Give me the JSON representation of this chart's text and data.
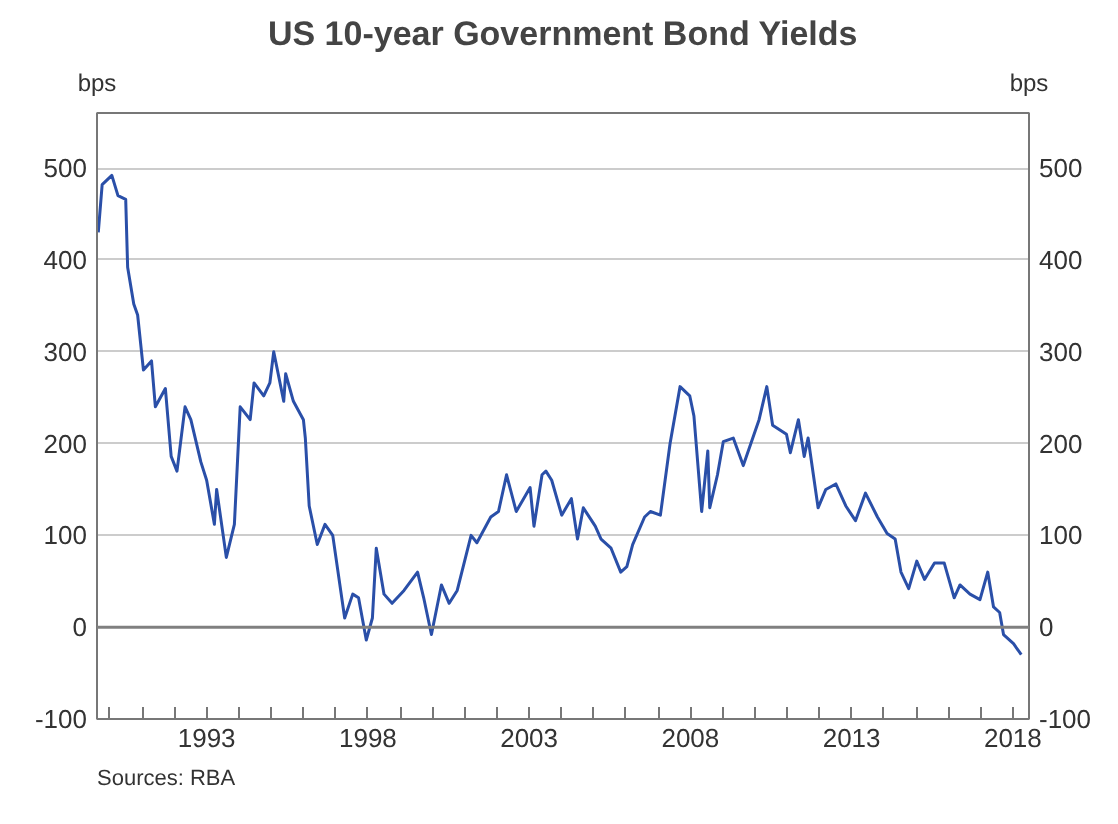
{
  "chart_data": {
    "type": "line",
    "title": "US 10-year Government Bond Yields",
    "ylabel": "bps",
    "y2label": "bps",
    "annotations": [
      "Sources: RBA"
    ],
    "x": [
      1989.64,
      1989.76,
      1990.06,
      1990.25,
      1990.49,
      1990.55,
      1990.74,
      1990.86,
      1991.04,
      1991.29,
      1991.41,
      1991.72,
      1991.9,
      1992.08,
      1992.33,
      1992.51,
      1992.82,
      1993.0,
      1993.24,
      1993.31,
      1993.61,
      1993.86,
      1994.04,
      1994.35,
      1994.47,
      1994.77,
      1994.96,
      1995.08,
      1995.39,
      1995.45,
      1995.69,
      1996.0,
      1996.06,
      1996.18,
      1996.43,
      1996.67,
      1996.91,
      1997.28,
      1997.53,
      1997.71,
      1997.95,
      1998.14,
      1998.26,
      1998.5,
      1998.75,
      1999.12,
      1999.54,
      1999.73,
      1999.97,
      2000.28,
      2000.52,
      2000.77,
      2001.2,
      2001.38,
      2001.81,
      2002.05,
      2002.3,
      2002.6,
      2003.03,
      2003.15,
      2003.4,
      2003.52,
      2003.7,
      2004.01,
      2004.31,
      2004.5,
      2004.68,
      2005.05,
      2005.23,
      2005.54,
      2005.84,
      2006.03,
      2006.21,
      2006.58,
      2006.76,
      2007.07,
      2007.37,
      2007.68,
      2007.98,
      2008.11,
      2008.35,
      2008.54,
      2008.6,
      2008.84,
      2009.02,
      2009.33,
      2009.64,
      2010.13,
      2010.37,
      2010.55,
      2010.98,
      2011.1,
      2011.35,
      2011.53,
      2011.65,
      2011.96,
      2012.2,
      2012.51,
      2012.82,
      2013.12,
      2013.43,
      2013.8,
      2014.1,
      2014.35,
      2014.53,
      2014.77,
      2015.02,
      2015.26,
      2015.57,
      2015.87,
      2016.18,
      2016.36,
      2016.67,
      2016.98,
      2017.22,
      2017.4,
      2017.59,
      2017.71,
      2018.02,
      2018.26
    ],
    "series": [
      {
        "color": "#2a4fa8",
        "values": [
          430,
          482,
          492,
          470,
          466,
          392,
          352,
          340,
          280,
          290,
          240,
          260,
          186,
          170,
          240,
          226,
          180,
          160,
          112,
          150,
          76,
          112,
          240,
          226,
          266,
          252,
          266,
          300,
          246,
          276,
          246,
          226,
          206,
          132,
          90,
          112,
          100,
          10,
          36,
          32,
          -14,
          10,
          86,
          36,
          26,
          40,
          60,
          32,
          -8,
          46,
          26,
          40,
          100,
          92,
          120,
          126,
          166,
          126,
          152,
          110,
          166,
          170,
          160,
          122,
          140,
          96,
          130,
          110,
          96,
          86,
          60,
          66,
          90,
          120,
          126,
          122,
          200,
          262,
          252,
          230,
          126,
          192,
          130,
          166,
          202,
          206,
          176,
          226,
          262,
          220,
          210,
          190,
          226,
          186,
          206,
          130,
          150,
          156,
          132,
          116,
          146,
          120,
          102,
          96,
          60,
          42,
          72,
          52,
          70,
          70,
          32,
          46,
          36,
          30,
          60,
          22,
          16,
          -8,
          -18,
          -30
        ]
      }
    ],
    "xlim": [
      1989.6,
      2018.5
    ],
    "xticks": [
      {
        "value": 1990,
        "label": null
      },
      {
        "value": 1991,
        "label": null
      },
      {
        "value": 1992,
        "label": null
      },
      1993,
      {
        "value": 1994,
        "label": null
      },
      {
        "value": 1995,
        "label": null
      },
      {
        "value": 1996,
        "label": null
      },
      {
        "value": 1997,
        "label": null
      },
      1998,
      {
        "value": 1999,
        "label": null
      },
      {
        "value": 2000,
        "label": null
      },
      {
        "value": 2001,
        "label": null
      },
      {
        "value": 2002,
        "label": null
      },
      2003,
      {
        "value": 2004,
        "label": null
      },
      {
        "value": 2005,
        "label": null
      },
      {
        "value": 2006,
        "label": null
      },
      {
        "value": 2007,
        "label": null
      },
      2008,
      {
        "value": 2009,
        "label": null
      },
      {
        "value": 2010,
        "label": null
      },
      {
        "value": 2011,
        "label": null
      },
      {
        "value": 2012,
        "label": null
      },
      2013,
      {
        "value": 2014,
        "label": null
      },
      {
        "value": 2015,
        "label": null
      },
      {
        "value": 2016,
        "label": null
      },
      {
        "value": 2017,
        "label": null
      },
      2018
    ],
    "ylim": [
      -100,
      560
    ],
    "yticks": [
      -100,
      0,
      100,
      200,
      300,
      400,
      500
    ],
    "y2lim": [
      -100,
      560
    ],
    "y2ticks": [
      -100,
      0,
      100,
      200,
      300,
      400,
      500
    ],
    "ref_lines": [
      {
        "axis": "y",
        "value": 0,
        "color": "#808080"
      }
    ],
    "grid": "y",
    "line_style": "solid"
  }
}
